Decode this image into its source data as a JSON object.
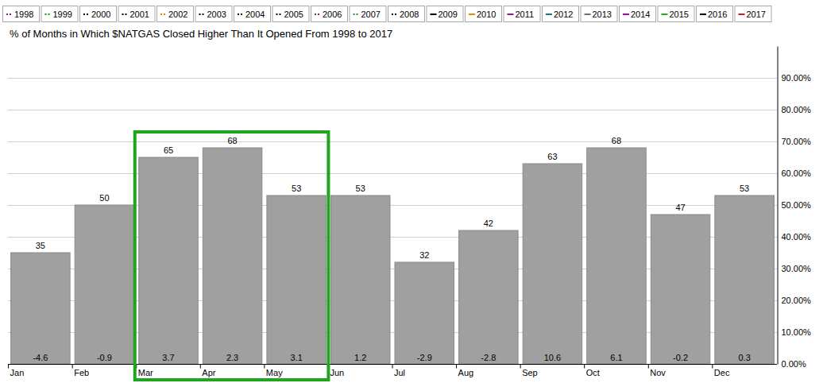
{
  "chart_data": {
    "type": "bar",
    "title": "% of Months in Which $NATGAS Closed Higher Than It Opened From 1998 to 2017",
    "categories": [
      "Jan",
      "Feb",
      "Mar",
      "Apr",
      "May",
      "Jun",
      "Jul",
      "Aug",
      "Sep",
      "Oct",
      "Nov",
      "Dec"
    ],
    "values": [
      35,
      50,
      65,
      68,
      53,
      53,
      32,
      42,
      63,
      68,
      47,
      53
    ],
    "avg_change": [
      -4.6,
      -0.9,
      3.7,
      2.3,
      3.1,
      1.2,
      -2.9,
      -2.8,
      10.6,
      6.1,
      -0.2,
      0.3
    ],
    "color": "#a0a0a0",
    "ylim": [
      0,
      100
    ],
    "yticks": [
      {
        "value": 0,
        "label": "0.00%"
      },
      {
        "value": 10,
        "label": "10.00%"
      },
      {
        "value": 20,
        "label": "20.00%"
      },
      {
        "value": 30,
        "label": "30.00%"
      },
      {
        "value": 40,
        "label": "40.00%"
      },
      {
        "value": 50,
        "label": "50.00%"
      },
      {
        "value": 60,
        "label": "60.00%"
      },
      {
        "value": 70,
        "label": "70.00%"
      },
      {
        "value": 80,
        "label": "80.00%"
      },
      {
        "value": 90,
        "label": "90.00%"
      }
    ],
    "grid": true,
    "data_labels": true,
    "legend": "top",
    "legend_entries": [
      {
        "name": "1998",
        "color": "#8b1a8b",
        "line_style": "dotted"
      },
      {
        "name": "1999",
        "color": "#1a9a1a",
        "line_style": "dotted"
      },
      {
        "name": "2000",
        "color": "#000000",
        "line_style": "dotted"
      },
      {
        "name": "2001",
        "color": "#000000",
        "line_style": "dotted"
      },
      {
        "name": "2002",
        "color": "#e08a00",
        "line_style": "dotted"
      },
      {
        "name": "2003",
        "color": "#000000",
        "line_style": "dotted"
      },
      {
        "name": "2004",
        "color": "#000000",
        "line_style": "dotted"
      },
      {
        "name": "2005",
        "color": "#000000",
        "line_style": "dotted"
      },
      {
        "name": "2006",
        "color": "#8b1a8b",
        "line_style": "dotted"
      },
      {
        "name": "2007",
        "color": "#1a9a1a",
        "line_style": "dotted"
      },
      {
        "name": "2008",
        "color": "#000000",
        "line_style": "dotted"
      },
      {
        "name": "2009",
        "color": "#000000",
        "line_style": "solid"
      },
      {
        "name": "2010",
        "color": "#e08a00",
        "line_style": "solid"
      },
      {
        "name": "2011",
        "color": "#8b1a8b",
        "line_style": "solid"
      },
      {
        "name": "2012",
        "color": "#1a7a7a",
        "line_style": "solid"
      },
      {
        "name": "2013",
        "color": "#707070",
        "line_style": "solid"
      },
      {
        "name": "2014",
        "color": "#b000b0",
        "line_style": "solid"
      },
      {
        "name": "2015",
        "color": "#22b022",
        "line_style": "solid"
      },
      {
        "name": "2016",
        "color": "#000000",
        "line_style": "solid"
      },
      {
        "name": "2017",
        "color": "#c81e1e",
        "line_style": "solid"
      }
    ],
    "highlight": {
      "categories": [
        "Mar",
        "Apr",
        "May"
      ],
      "color": "#1fa51f"
    }
  }
}
